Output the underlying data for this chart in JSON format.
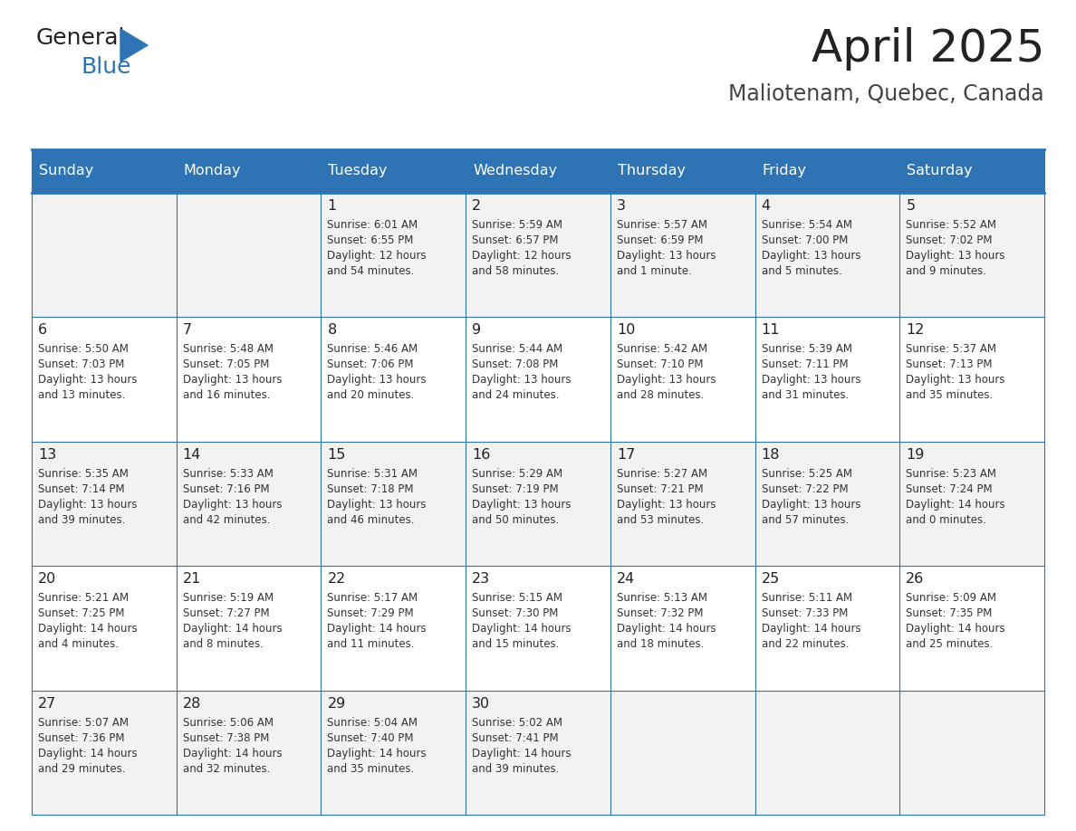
{
  "title": "April 2025",
  "subtitle": "Maliotenam, Quebec, Canada",
  "header_bg": "#2E74B5",
  "header_text_color": "#FFFFFF",
  "cell_bg_even": "#F2F2F2",
  "cell_bg_odd": "#FFFFFF",
  "border_color": "#2E74B5",
  "title_color": "#222222",
  "subtitle_color": "#444444",
  "day_names": [
    "Sunday",
    "Monday",
    "Tuesday",
    "Wednesday",
    "Thursday",
    "Friday",
    "Saturday"
  ],
  "weeks": [
    [
      {
        "day": "",
        "info": []
      },
      {
        "day": "",
        "info": []
      },
      {
        "day": "1",
        "info": [
          "Sunrise: 6:01 AM",
          "Sunset: 6:55 PM",
          "Daylight: 12 hours",
          "and 54 minutes."
        ]
      },
      {
        "day": "2",
        "info": [
          "Sunrise: 5:59 AM",
          "Sunset: 6:57 PM",
          "Daylight: 12 hours",
          "and 58 minutes."
        ]
      },
      {
        "day": "3",
        "info": [
          "Sunrise: 5:57 AM",
          "Sunset: 6:59 PM",
          "Daylight: 13 hours",
          "and 1 minute."
        ]
      },
      {
        "day": "4",
        "info": [
          "Sunrise: 5:54 AM",
          "Sunset: 7:00 PM",
          "Daylight: 13 hours",
          "and 5 minutes."
        ]
      },
      {
        "day": "5",
        "info": [
          "Sunrise: 5:52 AM",
          "Sunset: 7:02 PM",
          "Daylight: 13 hours",
          "and 9 minutes."
        ]
      }
    ],
    [
      {
        "day": "6",
        "info": [
          "Sunrise: 5:50 AM",
          "Sunset: 7:03 PM",
          "Daylight: 13 hours",
          "and 13 minutes."
        ]
      },
      {
        "day": "7",
        "info": [
          "Sunrise: 5:48 AM",
          "Sunset: 7:05 PM",
          "Daylight: 13 hours",
          "and 16 minutes."
        ]
      },
      {
        "day": "8",
        "info": [
          "Sunrise: 5:46 AM",
          "Sunset: 7:06 PM",
          "Daylight: 13 hours",
          "and 20 minutes."
        ]
      },
      {
        "day": "9",
        "info": [
          "Sunrise: 5:44 AM",
          "Sunset: 7:08 PM",
          "Daylight: 13 hours",
          "and 24 minutes."
        ]
      },
      {
        "day": "10",
        "info": [
          "Sunrise: 5:42 AM",
          "Sunset: 7:10 PM",
          "Daylight: 13 hours",
          "and 28 minutes."
        ]
      },
      {
        "day": "11",
        "info": [
          "Sunrise: 5:39 AM",
          "Sunset: 7:11 PM",
          "Daylight: 13 hours",
          "and 31 minutes."
        ]
      },
      {
        "day": "12",
        "info": [
          "Sunrise: 5:37 AM",
          "Sunset: 7:13 PM",
          "Daylight: 13 hours",
          "and 35 minutes."
        ]
      }
    ],
    [
      {
        "day": "13",
        "info": [
          "Sunrise: 5:35 AM",
          "Sunset: 7:14 PM",
          "Daylight: 13 hours",
          "and 39 minutes."
        ]
      },
      {
        "day": "14",
        "info": [
          "Sunrise: 5:33 AM",
          "Sunset: 7:16 PM",
          "Daylight: 13 hours",
          "and 42 minutes."
        ]
      },
      {
        "day": "15",
        "info": [
          "Sunrise: 5:31 AM",
          "Sunset: 7:18 PM",
          "Daylight: 13 hours",
          "and 46 minutes."
        ]
      },
      {
        "day": "16",
        "info": [
          "Sunrise: 5:29 AM",
          "Sunset: 7:19 PM",
          "Daylight: 13 hours",
          "and 50 minutes."
        ]
      },
      {
        "day": "17",
        "info": [
          "Sunrise: 5:27 AM",
          "Sunset: 7:21 PM",
          "Daylight: 13 hours",
          "and 53 minutes."
        ]
      },
      {
        "day": "18",
        "info": [
          "Sunrise: 5:25 AM",
          "Sunset: 7:22 PM",
          "Daylight: 13 hours",
          "and 57 minutes."
        ]
      },
      {
        "day": "19",
        "info": [
          "Sunrise: 5:23 AM",
          "Sunset: 7:24 PM",
          "Daylight: 14 hours",
          "and 0 minutes."
        ]
      }
    ],
    [
      {
        "day": "20",
        "info": [
          "Sunrise: 5:21 AM",
          "Sunset: 7:25 PM",
          "Daylight: 14 hours",
          "and 4 minutes."
        ]
      },
      {
        "day": "21",
        "info": [
          "Sunrise: 5:19 AM",
          "Sunset: 7:27 PM",
          "Daylight: 14 hours",
          "and 8 minutes."
        ]
      },
      {
        "day": "22",
        "info": [
          "Sunrise: 5:17 AM",
          "Sunset: 7:29 PM",
          "Daylight: 14 hours",
          "and 11 minutes."
        ]
      },
      {
        "day": "23",
        "info": [
          "Sunrise: 5:15 AM",
          "Sunset: 7:30 PM",
          "Daylight: 14 hours",
          "and 15 minutes."
        ]
      },
      {
        "day": "24",
        "info": [
          "Sunrise: 5:13 AM",
          "Sunset: 7:32 PM",
          "Daylight: 14 hours",
          "and 18 minutes."
        ]
      },
      {
        "day": "25",
        "info": [
          "Sunrise: 5:11 AM",
          "Sunset: 7:33 PM",
          "Daylight: 14 hours",
          "and 22 minutes."
        ]
      },
      {
        "day": "26",
        "info": [
          "Sunrise: 5:09 AM",
          "Sunset: 7:35 PM",
          "Daylight: 14 hours",
          "and 25 minutes."
        ]
      }
    ],
    [
      {
        "day": "27",
        "info": [
          "Sunrise: 5:07 AM",
          "Sunset: 7:36 PM",
          "Daylight: 14 hours",
          "and 29 minutes."
        ]
      },
      {
        "day": "28",
        "info": [
          "Sunrise: 5:06 AM",
          "Sunset: 7:38 PM",
          "Daylight: 14 hours",
          "and 32 minutes."
        ]
      },
      {
        "day": "29",
        "info": [
          "Sunrise: 5:04 AM",
          "Sunset: 7:40 PM",
          "Daylight: 14 hours",
          "and 35 minutes."
        ]
      },
      {
        "day": "30",
        "info": [
          "Sunrise: 5:02 AM",
          "Sunset: 7:41 PM",
          "Daylight: 14 hours",
          "and 39 minutes."
        ]
      },
      {
        "day": "",
        "info": []
      },
      {
        "day": "",
        "info": []
      },
      {
        "day": "",
        "info": []
      }
    ]
  ],
  "logo_color_general": "#222222",
  "logo_color_blue": "#2E74B5",
  "fig_width": 11.88,
  "fig_height": 9.18,
  "dpi": 100
}
